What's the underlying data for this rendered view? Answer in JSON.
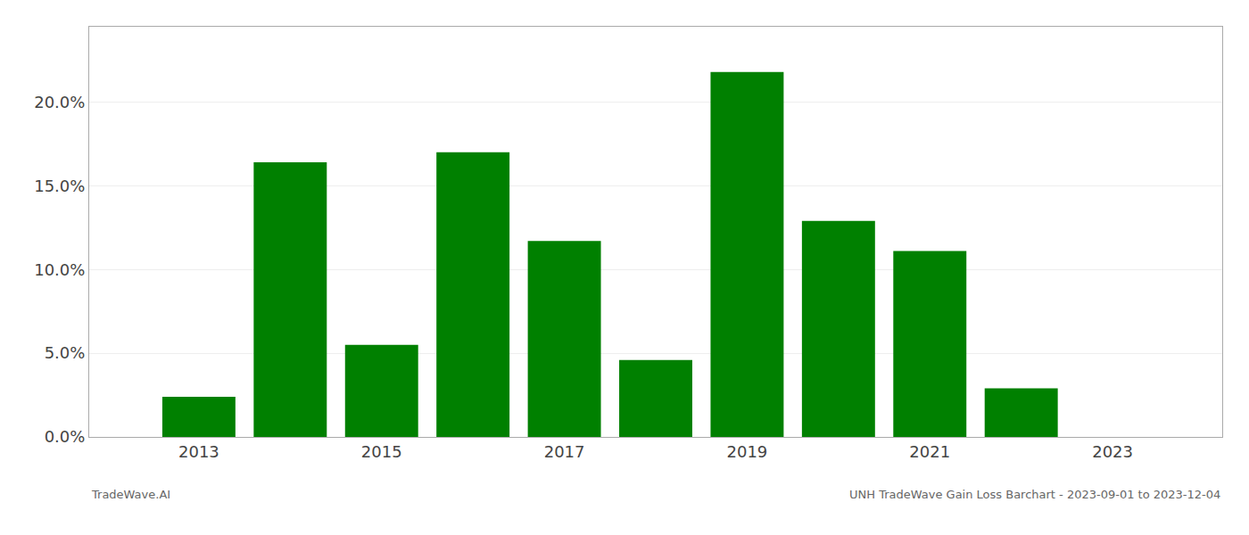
{
  "chart_data": {
    "type": "bar",
    "x": [
      2013,
      2014,
      2015,
      2016,
      2017,
      2018,
      2019,
      2020,
      2021,
      2022,
      2023
    ],
    "values": [
      0.024,
      0.164,
      0.055,
      0.17,
      0.117,
      0.046,
      0.218,
      0.129,
      0.111,
      0.029,
      0.0
    ],
    "color": "#008000",
    "xlim": [
      2011.8,
      2024.2
    ],
    "xticks": [
      2013,
      2015,
      2017,
      2019,
      2021,
      2023
    ],
    "ylim": [
      0,
      0.245
    ],
    "yticks": [
      {
        "value": 0.0,
        "label": "0.0%"
      },
      {
        "value": 0.05,
        "label": "5.0%"
      },
      {
        "value": 0.1,
        "label": "10.0%"
      },
      {
        "value": 0.15,
        "label": "15.0%"
      },
      {
        "value": 0.2,
        "label": "20.0%"
      }
    ],
    "grid": true,
    "annotations": [
      "TradeWave.AI",
      "UNH TradeWave Gain Loss Barchart - 2023-09-01 to 2023-12-04"
    ]
  }
}
